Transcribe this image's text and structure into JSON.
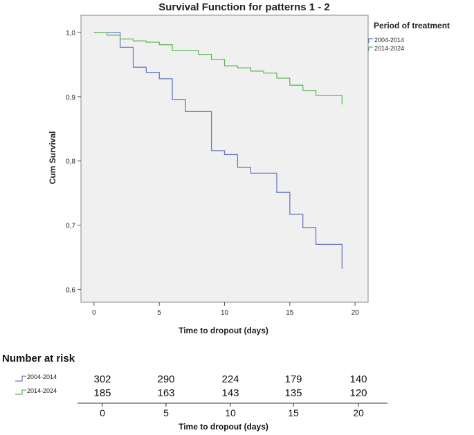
{
  "chart_data": {
    "type": "line",
    "title": "Survival Function for patterns 1 - 2",
    "xlabel": "Time to dropout (days)",
    "ylabel": "Cum Survival",
    "xlim": [
      -1,
      21
    ],
    "ylim": [
      0.58,
      1.027
    ],
    "x_ticks": [
      0,
      5,
      10,
      15,
      20
    ],
    "x_tick_labels": [
      "0",
      "5",
      "10",
      "15",
      "20"
    ],
    "y_ticks": [
      0.6,
      0.7,
      0.8,
      0.9,
      1.0
    ],
    "y_tick_labels": [
      "0,6",
      "0,7",
      "0,8",
      "0,9",
      "1,0"
    ],
    "grid": false,
    "legend": {
      "title": "Period of treatment",
      "position": "right"
    },
    "series": [
      {
        "name": "2004-2014",
        "color": "#6b78c4",
        "steps": [
          [
            0,
            1.0
          ],
          [
            2,
            0.977
          ],
          [
            3,
            0.946
          ],
          [
            4,
            0.938
          ],
          [
            5,
            0.928
          ],
          [
            6,
            0.896
          ],
          [
            7,
            0.877
          ],
          [
            9,
            0.816
          ],
          [
            10,
            0.81
          ],
          [
            11,
            0.79
          ],
          [
            12,
            0.781
          ],
          [
            14,
            0.751
          ],
          [
            15,
            0.717
          ],
          [
            16,
            0.696
          ],
          [
            17,
            0.67
          ],
          [
            19,
            0.632
          ]
        ]
      },
      {
        "name": "2014-2024",
        "color": "#61b85a",
        "steps": [
          [
            0,
            1.0
          ],
          [
            1,
            0.996
          ],
          [
            2,
            0.99
          ],
          [
            3,
            0.987
          ],
          [
            4,
            0.985
          ],
          [
            5,
            0.981
          ],
          [
            6,
            0.972
          ],
          [
            8,
            0.966
          ],
          [
            9,
            0.958
          ],
          [
            10,
            0.948
          ],
          [
            11,
            0.945
          ],
          [
            12,
            0.94
          ],
          [
            13,
            0.937
          ],
          [
            14,
            0.929
          ],
          [
            15,
            0.918
          ],
          [
            16,
            0.91
          ],
          [
            17,
            0.902
          ],
          [
            19,
            0.888
          ]
        ]
      }
    ]
  },
  "risk_table": {
    "title": "Number at risk",
    "xlabel": "Time to dropout (days)",
    "ticks": [
      "0",
      "5",
      "10",
      "15",
      "20"
    ],
    "rows": [
      {
        "name": "2004-2014",
        "color": "#6b78c4",
        "values": [
          "302",
          "290",
          "224",
          "179",
          "140"
        ]
      },
      {
        "name": "2014-2024",
        "color": "#61b85a",
        "values": [
          "185",
          "163",
          "143",
          "135",
          "120"
        ]
      }
    ]
  }
}
